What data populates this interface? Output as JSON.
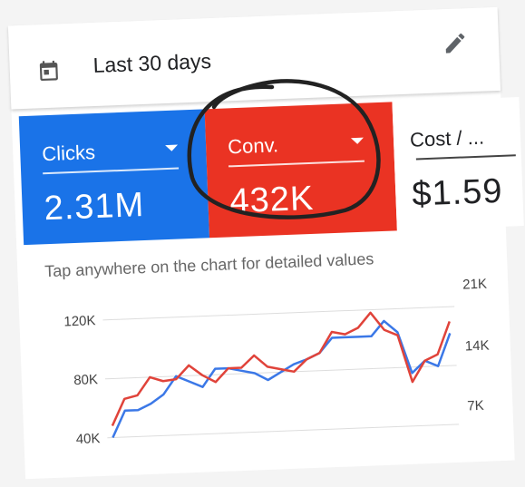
{
  "header": {
    "date_range": "Last 30 days",
    "calendar_icon": "calendar-icon",
    "edit_icon": "edit-icon"
  },
  "tiles": [
    {
      "label": "Clicks",
      "value": "2.31M",
      "color": "#1a73e8"
    },
    {
      "label": "Conv.",
      "value": "432K",
      "color": "#ea3323"
    },
    {
      "label": "Cost / ...",
      "value": "$1.59",
      "color": "#ffffff"
    }
  ],
  "chart": {
    "hint": "Tap anywhere on the chart for detailed values"
  },
  "chart_data": {
    "type": "line",
    "left_axis": {
      "ticks": [
        "120K",
        "80K",
        "40K"
      ],
      "ylim": [
        40000,
        120000
      ]
    },
    "right_axis": {
      "ticks": [
        "21K",
        "14K",
        "7K"
      ],
      "ylim": [
        7000,
        21000
      ]
    },
    "series": [
      {
        "name": "Clicks",
        "color": "#3b78e7",
        "axis": "left",
        "values": [
          40000,
          58000,
          58000,
          62000,
          68000,
          80000,
          76000,
          72000,
          84000,
          84000,
          82000,
          80000,
          75000,
          80000,
          85000,
          88000,
          92000,
          102000,
          102000,
          102000,
          102000,
          112000,
          104000,
          76000,
          84000,
          80000,
          102000
        ]
      },
      {
        "name": "Conv.",
        "color": "#e0433a",
        "axis": "left",
        "values": [
          48000,
          66000,
          68000,
          80000,
          77000,
          78000,
          87000,
          80000,
          75000,
          84000,
          84000,
          92000,
          84000,
          82000,
          80000,
          88000,
          92000,
          106000,
          104000,
          108000,
          118000,
          106000,
          102000,
          70000,
          84000,
          88000,
          110000
        ]
      }
    ]
  },
  "annotation": {
    "circle_color": "#222222"
  }
}
